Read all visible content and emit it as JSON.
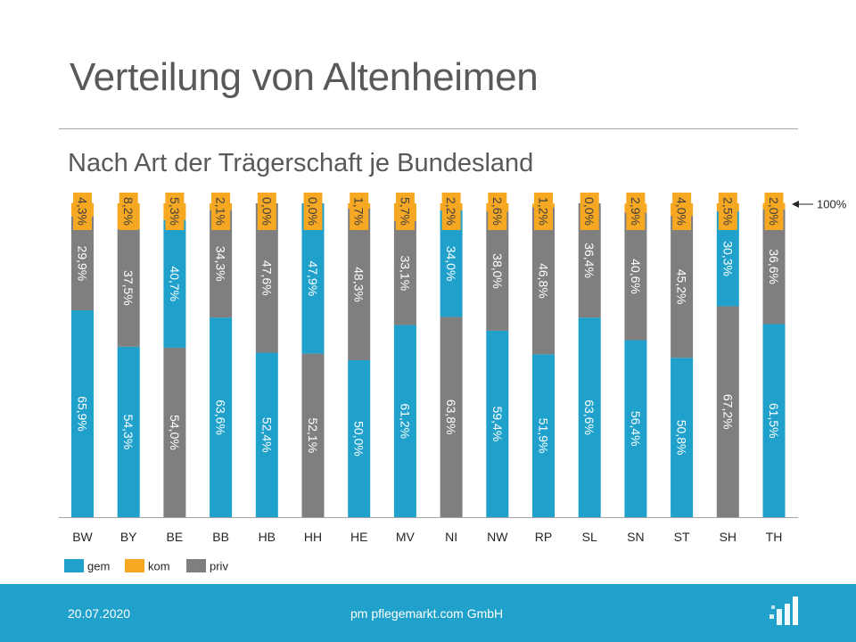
{
  "slide": {
    "title": "Verteilung von Altenheimen",
    "subtitle": "Nach Art der Trägerschaft je Bundesland"
  },
  "footer": {
    "date": "20.07.2020",
    "company": "pm pflegemarkt.com GmbH",
    "logo_icon": "pflegemarkt-logo-icon"
  },
  "colors": {
    "gem": "#1fa1cb",
    "kom": "#f6a823",
    "priv": "#7f7f7f",
    "footer": "#1fa1cb"
  },
  "chart_data": {
    "type": "bar",
    "stacked": true,
    "normalized": true,
    "title": "Nach Art der Trägerschaft je Bundesland",
    "categories": [
      "BW",
      "BY",
      "BE",
      "BB",
      "HB",
      "HH",
      "HE",
      "MV",
      "NI",
      "NW",
      "RP",
      "SL",
      "SN",
      "ST",
      "SH",
      "TH"
    ],
    "series": [
      {
        "name": "gem",
        "values": [
          65.9,
          54.3,
          40.7,
          63.6,
          52.4,
          47.9,
          50.0,
          61.2,
          34.0,
          59.4,
          51.9,
          63.6,
          56.4,
          50.8,
          30.3,
          61.5
        ],
        "labels": [
          "65,9%",
          "54,3%",
          "40,7%",
          "63,6%",
          "52,4%",
          "47,9%",
          "50,0%",
          "61,2%",
          "34,0%",
          "59,4%",
          "51,9%",
          "63,6%",
          "56,4%",
          "50,8%",
          "30,3%",
          "61,5%"
        ]
      },
      {
        "name": "priv",
        "values": [
          29.9,
          37.5,
          54.0,
          34.3,
          47.6,
          52.1,
          48.3,
          33.1,
          63.8,
          38.0,
          46.8,
          36.4,
          40.6,
          45.2,
          67.2,
          36.6
        ],
        "labels": [
          "29,9%",
          "37,5%",
          "54,0%",
          "34,3%",
          "47,6%",
          "52,1%",
          "48,3%",
          "33,1%",
          "63,8%",
          "38,0%",
          "46,8%",
          "36,4%",
          "40,6%",
          "45,2%",
          "67,2%",
          "36,6%"
        ]
      },
      {
        "name": "kom",
        "values": [
          4.3,
          8.2,
          5.3,
          2.1,
          0.0,
          0.0,
          1.7,
          5.7,
          2.2,
          2.6,
          1.2,
          0.0,
          2.9,
          4.0,
          2.5,
          2.0
        ],
        "labels": [
          "4,3%",
          "8,2%",
          "5,3%",
          "2,1%",
          "0,0%",
          "0,0%",
          "1,7%",
          "5,7%",
          "2,2%",
          "2,6%",
          "1,2%",
          "0,0%",
          "2,9%",
          "4,0%",
          "2,5%",
          "2,0%"
        ]
      }
    ],
    "stack_order_bottom_to_top": [
      [
        "gem",
        "priv",
        "kom"
      ],
      [
        "gem",
        "priv",
        "kom"
      ],
      [
        "priv",
        "gem",
        "kom"
      ],
      [
        "gem",
        "priv",
        "kom"
      ],
      [
        "gem",
        "priv",
        "kom"
      ],
      [
        "priv",
        "gem",
        "kom"
      ],
      [
        "gem",
        "priv",
        "kom"
      ],
      [
        "gem",
        "priv",
        "kom"
      ],
      [
        "priv",
        "gem",
        "kom"
      ],
      [
        "gem",
        "priv",
        "kom"
      ],
      [
        "gem",
        "priv",
        "kom"
      ],
      [
        "gem",
        "priv",
        "kom"
      ],
      [
        "gem",
        "priv",
        "kom"
      ],
      [
        "gem",
        "priv",
        "kom"
      ],
      [
        "priv",
        "gem",
        "kom"
      ],
      [
        "gem",
        "priv",
        "kom"
      ]
    ],
    "ylim": [
      0,
      100
    ],
    "annotation": "100%",
    "legend": {
      "position": "bottom-left",
      "entries": [
        {
          "key": "gem",
          "label": "gem"
        },
        {
          "key": "kom",
          "label": "kom"
        },
        {
          "key": "priv",
          "label": "priv"
        }
      ]
    },
    "xlabel": "",
    "ylabel": "",
    "grid": false
  }
}
